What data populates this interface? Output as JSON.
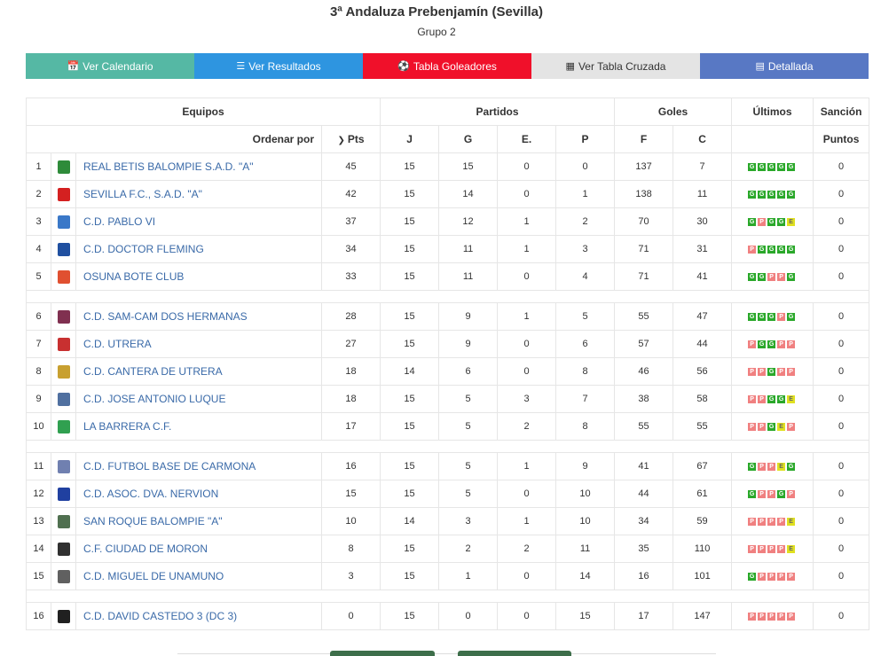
{
  "header": {
    "title": "3ª Andaluza Prebenjamín (Sevilla)",
    "subtitle": "Grupo 2"
  },
  "buttons": [
    {
      "label": "Ver Calendario",
      "icon": "calendar-icon",
      "color": "#55b8a4"
    },
    {
      "label": "Ver Resultados",
      "icon": "list-icon",
      "color": "#2e95e0"
    },
    {
      "label": "Tabla Goleadores",
      "icon": "soccer-ball-icon",
      "color": "#f0102a"
    },
    {
      "label": "Ver Tabla Cruzada",
      "icon": "grid-icon",
      "color": "#e4e4e4"
    },
    {
      "label": "Detallada",
      "icon": "table-icon",
      "color": "#5878c4"
    }
  ],
  "table": {
    "groups": {
      "equipos": "Equipos",
      "partidos": "Partidos",
      "goles": "Goles",
      "ultimos": "Últimos",
      "sancion": "Sanción"
    },
    "sort_label": "Ordenar por",
    "columns": {
      "pts": "Pts",
      "j": "J",
      "g": "G",
      "e": "E.",
      "p": "P",
      "f": "F",
      "c": "C",
      "puntos": "Puntos"
    },
    "teams": [
      {
        "pos": "1",
        "name": "REAL BETIS BALOMPIE S.A.D. \"A\"",
        "pts": "45",
        "j": "15",
        "g": "15",
        "e": "0",
        "p": "0",
        "f": "137",
        "c": "7",
        "last": [
          "G",
          "G",
          "G",
          "G",
          "G"
        ],
        "sancion": "0",
        "crest_color": "#2e8b3a"
      },
      {
        "pos": "2",
        "name": "SEVILLA F.C., S.A.D. \"A\"",
        "pts": "42",
        "j": "15",
        "g": "14",
        "e": "0",
        "p": "1",
        "f": "138",
        "c": "11",
        "last": [
          "G",
          "G",
          "G",
          "G",
          "G"
        ],
        "sancion": "0",
        "crest_color": "#d42020"
      },
      {
        "pos": "3",
        "name": "C.D. PABLO VI",
        "pts": "37",
        "j": "15",
        "g": "12",
        "e": "1",
        "p": "2",
        "f": "70",
        "c": "30",
        "last": [
          "G",
          "P",
          "G",
          "G",
          "E"
        ],
        "sancion": "0",
        "crest_color": "#3a78c8"
      },
      {
        "pos": "4",
        "name": "C.D. DOCTOR FLEMING",
        "pts": "34",
        "j": "15",
        "g": "11",
        "e": "1",
        "p": "3",
        "f": "71",
        "c": "31",
        "last": [
          "P",
          "G",
          "G",
          "G",
          "G"
        ],
        "sancion": "0",
        "crest_color": "#2050a0"
      },
      {
        "pos": "5",
        "name": "OSUNA BOTE CLUB",
        "pts": "33",
        "j": "15",
        "g": "11",
        "e": "0",
        "p": "4",
        "f": "71",
        "c": "41",
        "last": [
          "G",
          "G",
          "P",
          "P",
          "G"
        ],
        "sancion": "0",
        "crest_color": "#e05030"
      },
      {
        "pos": "6",
        "name": "C.D. SAM-CAM DOS HERMANAS",
        "pts": "28",
        "j": "15",
        "g": "9",
        "e": "1",
        "p": "5",
        "f": "55",
        "c": "47",
        "last": [
          "G",
          "G",
          "G",
          "P",
          "G"
        ],
        "sancion": "0",
        "crest_color": "#803050"
      },
      {
        "pos": "7",
        "name": "C.D. UTRERA",
        "pts": "27",
        "j": "15",
        "g": "9",
        "e": "0",
        "p": "6",
        "f": "57",
        "c": "44",
        "last": [
          "P",
          "G",
          "G",
          "P",
          "P"
        ],
        "sancion": "0",
        "crest_color": "#c83030"
      },
      {
        "pos": "8",
        "name": "C.D. CANTERA DE UTRERA",
        "pts": "18",
        "j": "14",
        "g": "6",
        "e": "0",
        "p": "8",
        "f": "46",
        "c": "56",
        "last": [
          "P",
          "P",
          "G",
          "P",
          "P"
        ],
        "sancion": "0",
        "crest_color": "#c8a030"
      },
      {
        "pos": "9",
        "name": "C.D. JOSE ANTONIO LUQUE",
        "pts": "18",
        "j": "15",
        "g": "5",
        "e": "3",
        "p": "7",
        "f": "38",
        "c": "58",
        "last": [
          "P",
          "P",
          "G",
          "G",
          "E"
        ],
        "sancion": "0",
        "crest_color": "#5070a0"
      },
      {
        "pos": "10",
        "name": "LA BARRERA C.F.",
        "pts": "17",
        "j": "15",
        "g": "5",
        "e": "2",
        "p": "8",
        "f": "55",
        "c": "55",
        "last": [
          "P",
          "P",
          "G",
          "E",
          "P"
        ],
        "sancion": "0",
        "crest_color": "#30a050"
      },
      {
        "pos": "11",
        "name": "C.D. FUTBOL BASE DE CARMONA",
        "pts": "16",
        "j": "15",
        "g": "5",
        "e": "1",
        "p": "9",
        "f": "41",
        "c": "67",
        "last": [
          "G",
          "P",
          "P",
          "E",
          "G"
        ],
        "sancion": "0",
        "crest_color": "#7080b0"
      },
      {
        "pos": "12",
        "name": "C.D. ASOC. DVA. NERVION",
        "pts": "15",
        "j": "15",
        "g": "5",
        "e": "0",
        "p": "10",
        "f": "44",
        "c": "61",
        "last": [
          "G",
          "P",
          "P",
          "G",
          "P"
        ],
        "sancion": "0",
        "crest_color": "#2040a0"
      },
      {
        "pos": "13",
        "name": "SAN ROQUE BALOMPIE \"A\"",
        "pts": "10",
        "j": "14",
        "g": "3",
        "e": "1",
        "p": "10",
        "f": "34",
        "c": "59",
        "last": [
          "P",
          "P",
          "P",
          "P",
          "E"
        ],
        "sancion": "0",
        "crest_color": "#507050"
      },
      {
        "pos": "14",
        "name": "C.F. CIUDAD DE MORON",
        "pts": "8",
        "j": "15",
        "g": "2",
        "e": "2",
        "p": "11",
        "f": "35",
        "c": "110",
        "last": [
          "P",
          "P",
          "P",
          "P",
          "E"
        ],
        "sancion": "0",
        "crest_color": "#303030"
      },
      {
        "pos": "15",
        "name": "C.D. MIGUEL DE UNAMUNO",
        "pts": "3",
        "j": "15",
        "g": "1",
        "e": "0",
        "p": "14",
        "f": "16",
        "c": "101",
        "last": [
          "G",
          "P",
          "P",
          "P",
          "P"
        ],
        "sancion": "0",
        "crest_color": "#606060"
      },
      {
        "pos": "16",
        "name": "C.D. DAVID CASTEDO 3 (DC 3)",
        "pts": "0",
        "j": "15",
        "g": "0",
        "e": "0",
        "p": "15",
        "f": "17",
        "c": "147",
        "last": [
          "P",
          "P",
          "P",
          "P",
          "P"
        ],
        "sancion": "0",
        "crest_color": "#202020"
      }
    ],
    "gaps_after": [
      5,
      10,
      15
    ]
  }
}
